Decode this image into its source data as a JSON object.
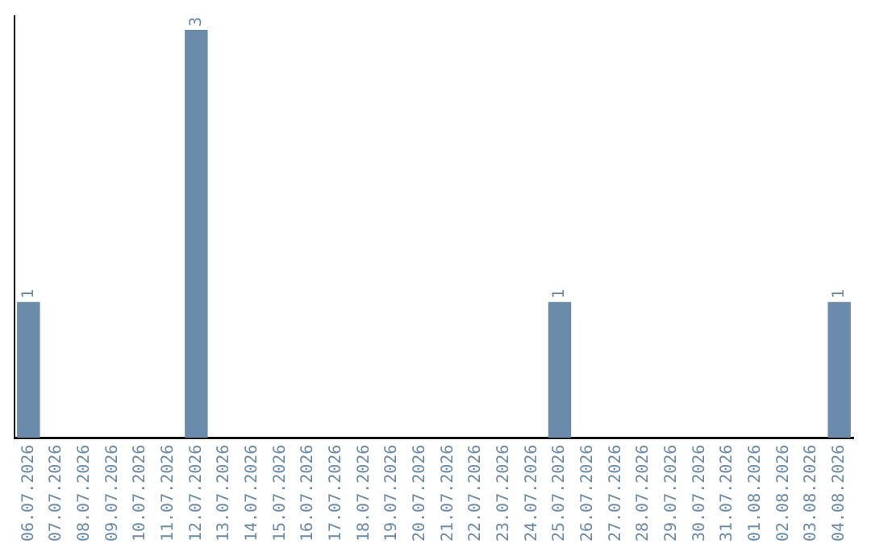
{
  "chart_data": {
    "type": "bar",
    "categories": [
      "06.07.2026",
      "07.07.2026",
      "08.07.2026",
      "09.07.2026",
      "10.07.2026",
      "11.07.2026",
      "12.07.2026",
      "13.07.2026",
      "14.07.2026",
      "15.07.2026",
      "16.07.2026",
      "17.07.2026",
      "18.07.2026",
      "19.07.2026",
      "20.07.2026",
      "21.07.2026",
      "22.07.2026",
      "23.07.2026",
      "24.07.2026",
      "25.07.2026",
      "26.07.2026",
      "27.07.2026",
      "28.07.2026",
      "29.07.2026",
      "30.07.2026",
      "31.07.2026",
      "01.08.2026",
      "02.08.2026",
      "03.08.2026",
      "04.08.2026"
    ],
    "values": [
      1,
      0,
      0,
      0,
      0,
      0,
      3,
      0,
      0,
      0,
      0,
      0,
      0,
      0,
      0,
      0,
      0,
      0,
      0,
      1,
      0,
      0,
      0,
      0,
      0,
      0,
      0,
      0,
      0,
      1
    ],
    "value_labels": [
      "1",
      null,
      null,
      null,
      null,
      null,
      "3",
      null,
      null,
      null,
      null,
      null,
      null,
      null,
      null,
      null,
      null,
      null,
      null,
      "1",
      null,
      null,
      null,
      null,
      null,
      null,
      null,
      null,
      null,
      "1"
    ],
    "color": "#6a8caa",
    "ylim": [
      0,
      3.1
    ],
    "tick_labels": "x",
    "grid": false,
    "legend": false
  }
}
